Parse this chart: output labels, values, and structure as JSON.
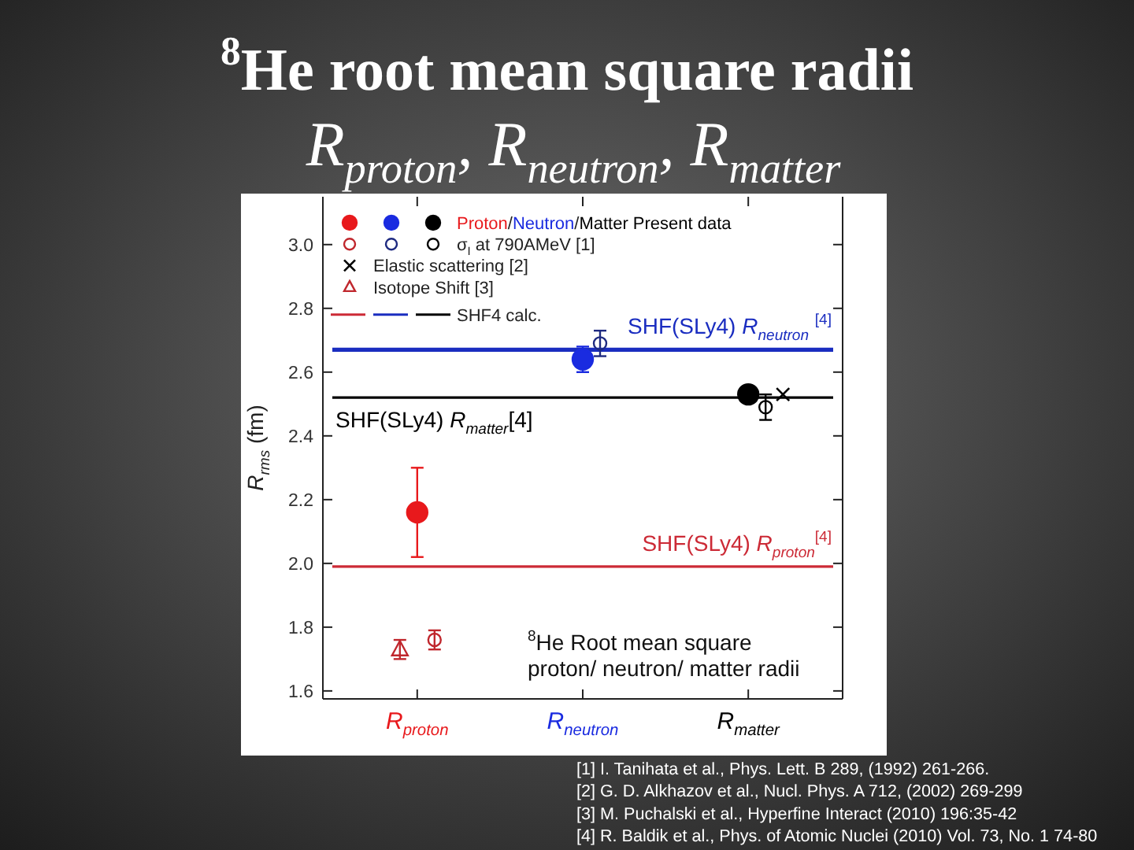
{
  "chart_data": {
    "type": "scatter",
    "title": "$^{8}$He root mean square radii",
    "subtitle": "R$_{proton}$, R$_{neutron}$, R$_{matter}$",
    "ylabel": "R$_{rms}$ (fm)",
    "categories": [
      "R$_{proton}$",
      "R$_{neutron}$",
      "R$_{matter}$"
    ],
    "ylim": [
      1.575,
      3.15
    ],
    "yticks": [
      {
        "value": 3,
        "label": "3.0"
      },
      2.8,
      2.6,
      2.4,
      2.2,
      {
        "value": 2,
        "label": "2.0"
      },
      1.8,
      1.6
    ],
    "series": [
      {
        "name": "Proton/Neutron/Matter Present data",
        "marker": "circle",
        "colors": [
          "#e8191c",
          "#1a2be0",
          "#000000"
        ],
        "values": [
          2.16,
          2.64,
          2.53
        ],
        "errors": [
          0.14,
          0.04,
          null
        ]
      },
      {
        "name": "σ$_{I}$ at 790AMeV [1]",
        "marker": "circle",
        "colors": [
          "#c0272d",
          "#1e2a80",
          "#000000"
        ],
        "values": [
          1.76,
          2.69,
          2.49
        ],
        "errors": [
          0.03,
          0.04,
          0.04
        ]
      },
      {
        "name": "Elastic scattering [2]",
        "marker": "cross",
        "color": "#000000",
        "values": [
          null,
          null,
          2.53
        ]
      },
      {
        "name": "Isotope Shift [3]",
        "marker": "triangle",
        "color": "#c0272d",
        "values": [
          1.73,
          null,
          null
        ],
        "errors": [
          0.03,
          null,
          null
        ]
      }
    ],
    "ref_lines": [
      {
        "axis": "y",
        "value": 1.99,
        "label": "SHF(SLy4) R$_{proton}$$^{[4]}$",
        "color": "#cc2a36"
      },
      {
        "axis": "y",
        "value": 2.67,
        "label": "SHF(SLy4) R$_{neutron}$ $^{[4]}$",
        "color": "#1a2dc0"
      },
      {
        "axis": "y",
        "value": 2.52,
        "label": "SHF(SLy4) R$_{matter}$[4]",
        "color": "#000000"
      }
    ],
    "legend": "top left",
    "annotations": [
      "$^{8}$He Root mean square\nproton/ neutron/ matter radii",
      "SHF4 calc.",
      "[1] I. Tanihata et al., Phys. Lett. B 289, (1992) 261-266.",
      "[2] G. D. Alkhazov et al., Nucl. Phys. A 712, (2002) 269-299",
      "[3] M. Puchalski et al., Hyperfine Interact (2010) 196:35-42",
      "[4] R. Baldik et al., Phys. of Atomic Nuclei (2010) Vol. 73, No. 1 74-80"
    ]
  }
}
